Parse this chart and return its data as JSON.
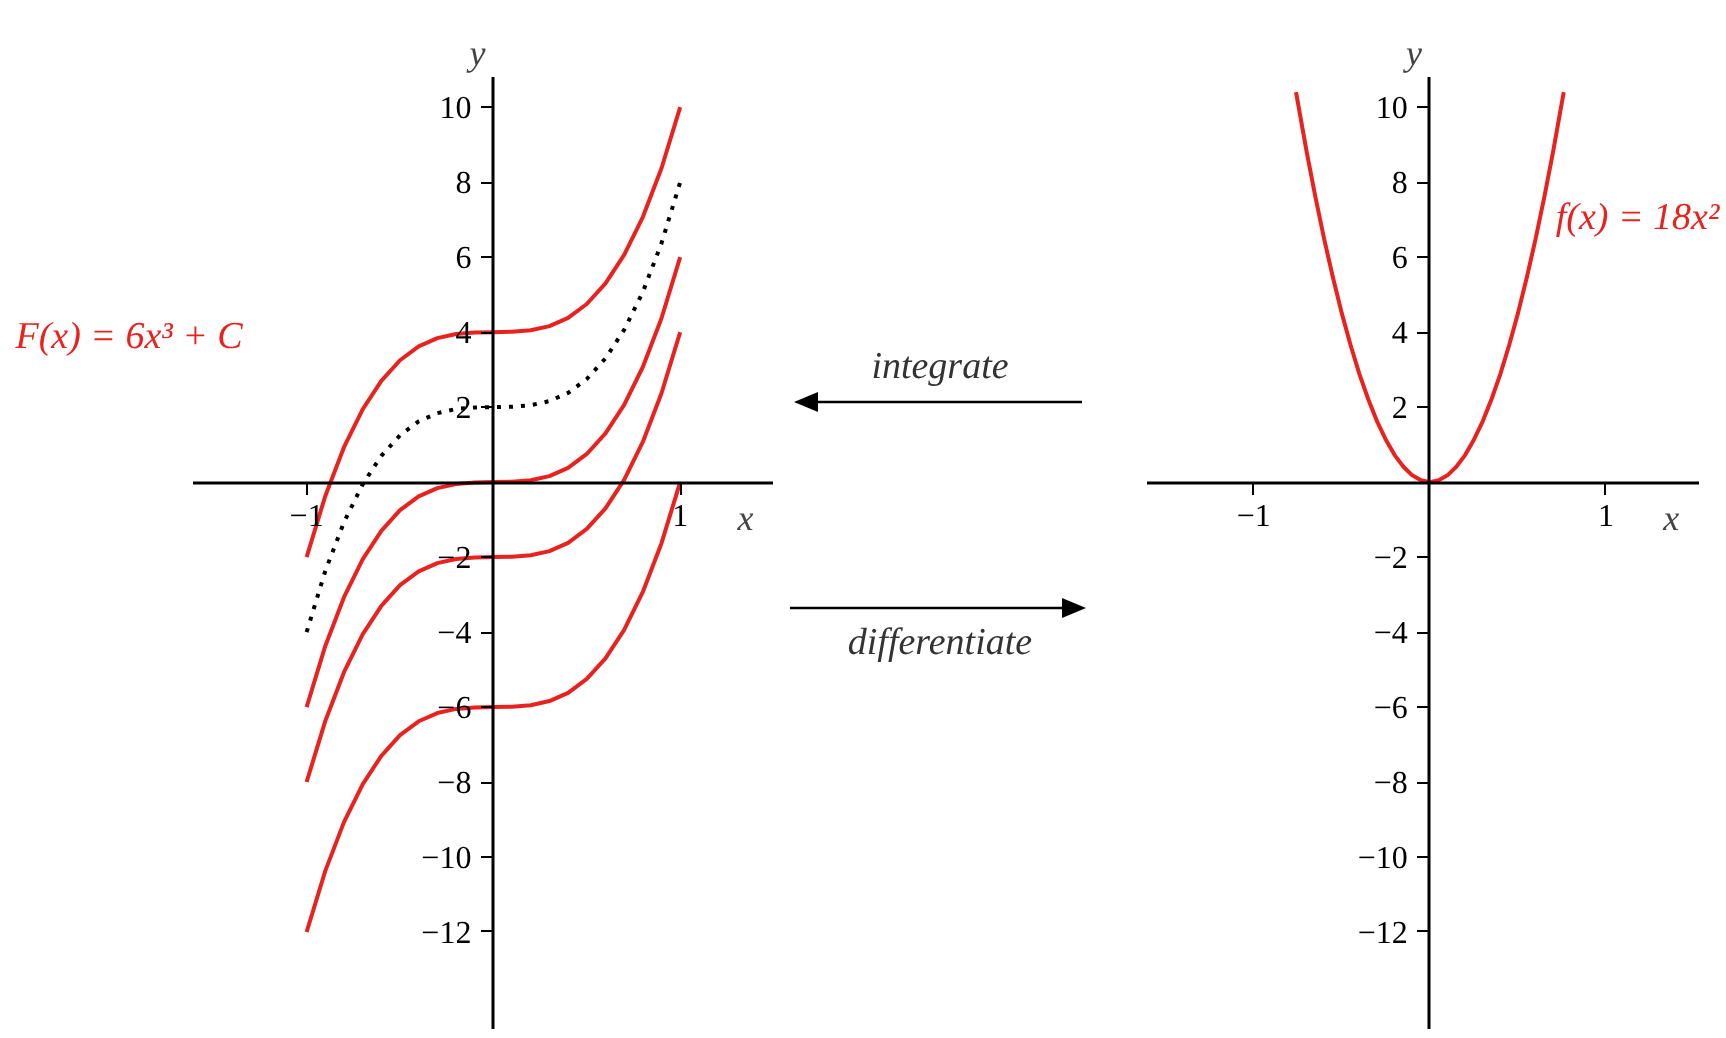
{
  "chart_data": [
    {
      "type": "line",
      "xlabel": "x",
      "ylabel": "y",
      "annotations": [
        "F(x) = 6x³ + C"
      ],
      "x": [
        -1,
        -0.9,
        -0.8,
        -0.7,
        -0.6,
        -0.5,
        -0.4,
        -0.3,
        -0.2,
        -0.1,
        0,
        0.1,
        0.2,
        0.3,
        0.4,
        0.5,
        0.6,
        0.7,
        0.8,
        0.9,
        1
      ],
      "series": [
        {
          "color": "#e8231f",
          "values": [
            -2,
            -0.37,
            0.93,
            1.94,
            2.7,
            3.25,
            3.62,
            3.84,
            3.95,
            3.99,
            4,
            4.01,
            4.05,
            4.16,
            4.38,
            4.75,
            5.3,
            6.06,
            7.07,
            8.37,
            10
          ]
        },
        {
          "color": "#000000",
          "line_style": "dotted",
          "values": [
            -4,
            -2.37,
            -1.07,
            -0.06,
            0.7,
            1.25,
            1.62,
            1.84,
            1.95,
            1.99,
            2,
            2.01,
            2.05,
            2.16,
            2.38,
            2.75,
            3.3,
            4.06,
            5.07,
            6.37,
            8
          ]
        },
        {
          "color": "#e8231f",
          "values": [
            -6,
            -4.37,
            -3.07,
            -2.06,
            -1.3,
            -0.75,
            -0.38,
            -0.16,
            -0.05,
            -0.01,
            0,
            0.01,
            0.05,
            0.16,
            0.38,
            0.75,
            1.3,
            2.06,
            3.07,
            4.37,
            6
          ]
        },
        {
          "color": "#e8231f",
          "values": [
            -8,
            -6.37,
            -5.07,
            -4.06,
            -3.3,
            -2.75,
            -2.38,
            -2.16,
            -2.05,
            -2.01,
            -2,
            -1.99,
            -1.95,
            -1.84,
            -1.62,
            -1.25,
            -0.7,
            0.06,
            1.07,
            2.37,
            4
          ]
        },
        {
          "color": "#e8231f",
          "values": [
            -12,
            -10.37,
            -9.07,
            -8.06,
            -7.3,
            -6.75,
            -6.38,
            -6.16,
            -6.05,
            -6.01,
            -6,
            -5.99,
            -5.95,
            -5.84,
            -5.62,
            -5.25,
            -4.7,
            -3.94,
            -2.93,
            -1.63,
            0
          ]
        }
      ],
      "xlim": [
        -1.61,
        1.5
      ],
      "ylim": [
        -14.6,
        10.8
      ],
      "xticks": [
        {
          "value": -1,
          "label": "−1"
        },
        1
      ],
      "yticks": [
        {
          "value": -12,
          "label": "−12"
        },
        {
          "value": -10,
          "label": "−10"
        },
        {
          "value": -8,
          "label": "−8"
        },
        {
          "value": -6,
          "label": "−6"
        },
        {
          "value": -4,
          "label": "−4"
        },
        {
          "value": -2,
          "label": "−2"
        },
        2,
        4,
        6,
        8,
        10
      ]
    },
    {
      "type": "other",
      "annotations": [
        "integrate",
        "differentiate"
      ]
    },
    {
      "type": "line",
      "xlabel": "x",
      "ylabel": "y",
      "annotations": [
        "f(x) = 18x²"
      ],
      "x": [
        -0.76,
        -0.7,
        -0.65,
        -0.6,
        -0.55,
        -0.5,
        -0.45,
        -0.4,
        -0.35,
        -0.3,
        -0.25,
        -0.2,
        -0.15,
        -0.1,
        -0.05,
        0,
        0.05,
        0.1,
        0.15,
        0.2,
        0.25,
        0.3,
        0.35,
        0.4,
        0.45,
        0.5,
        0.55,
        0.6,
        0.65,
        0.7,
        0.76
      ],
      "series": [
        {
          "color": "#e8231f",
          "values": [
            10.4,
            8.82,
            7.61,
            6.48,
            5.45,
            4.5,
            3.65,
            2.88,
            2.21,
            1.62,
            1.13,
            0.72,
            0.41,
            0.18,
            0.05,
            0,
            0.05,
            0.18,
            0.41,
            0.72,
            1.13,
            1.62,
            2.21,
            2.88,
            3.65,
            4.5,
            5.45,
            6.48,
            7.61,
            8.82,
            10.4
          ]
        }
      ],
      "xlim": [
        -1.61,
        1.53
      ],
      "ylim": [
        -14.6,
        10.8
      ],
      "xticks": [
        {
          "value": -1,
          "label": "−1"
        },
        1
      ],
      "yticks": [
        {
          "value": -12,
          "label": "−12"
        },
        {
          "value": -10,
          "label": "−10"
        },
        {
          "value": -8,
          "label": "−8"
        },
        {
          "value": -6,
          "label": "−6"
        },
        {
          "value": -4,
          "label": "−4"
        },
        {
          "value": -2,
          "label": "−2"
        },
        2,
        4,
        6,
        8,
        10
      ]
    }
  ]
}
